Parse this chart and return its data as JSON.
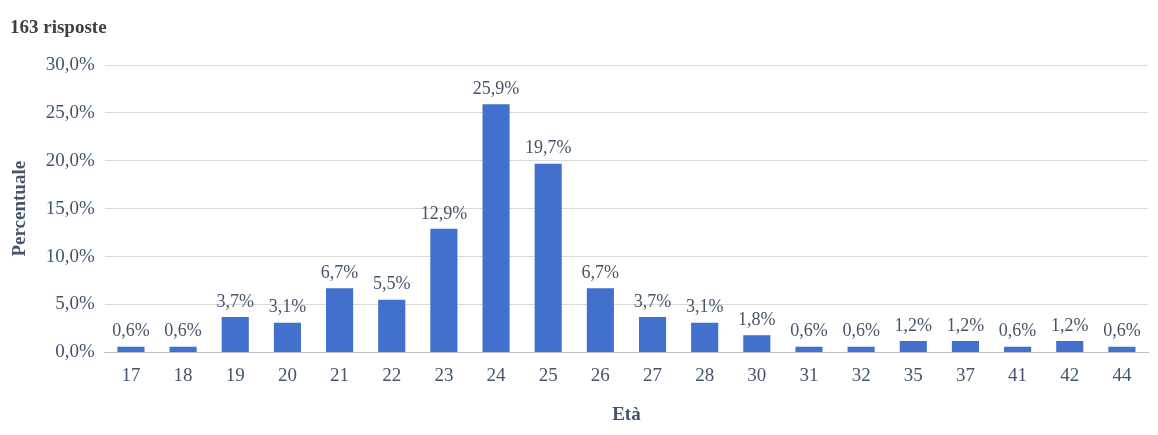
{
  "chart_data": {
    "type": "bar",
    "title": "163 risposte",
    "xlabel": "Età",
    "ylabel": "Percentuale",
    "categories": [
      "17",
      "18",
      "19",
      "20",
      "21",
      "22",
      "23",
      "24",
      "25",
      "26",
      "27",
      "28",
      "30",
      "31",
      "32",
      "35",
      "37",
      "41",
      "42",
      "44"
    ],
    "values": [
      0.6,
      0.6,
      3.7,
      3.1,
      6.7,
      5.5,
      12.9,
      25.9,
      19.7,
      6.7,
      3.7,
      3.1,
      1.8,
      0.6,
      0.6,
      1.2,
      1.2,
      0.6,
      1.2,
      0.6
    ],
    "value_labels": [
      "0,6%",
      "0,6%",
      "3,7%",
      "3,1%",
      "6,7%",
      "5,5%",
      "12,9%",
      "25,9%",
      "19,7%",
      "6,7%",
      "3,7%",
      "3,1%",
      "1,8%",
      "0,6%",
      "0,6%",
      "1,2%",
      "1,2%",
      "0,6%",
      "1,2%",
      "0,6%"
    ],
    "color": "#4170cd",
    "ylim": [
      0,
      30
    ],
    "yticks": [
      {
        "value": 0,
        "label": "0,0%"
      },
      {
        "value": 5,
        "label": "5,0%"
      },
      {
        "value": 10,
        "label": "10,0%"
      },
      {
        "value": 15,
        "label": "15,0%"
      },
      {
        "value": 20,
        "label": "20,0%"
      },
      {
        "value": 25,
        "label": "25,0%"
      },
      {
        "value": 30,
        "label": "30,0%"
      }
    ],
    "grid": "y",
    "legend": false
  }
}
